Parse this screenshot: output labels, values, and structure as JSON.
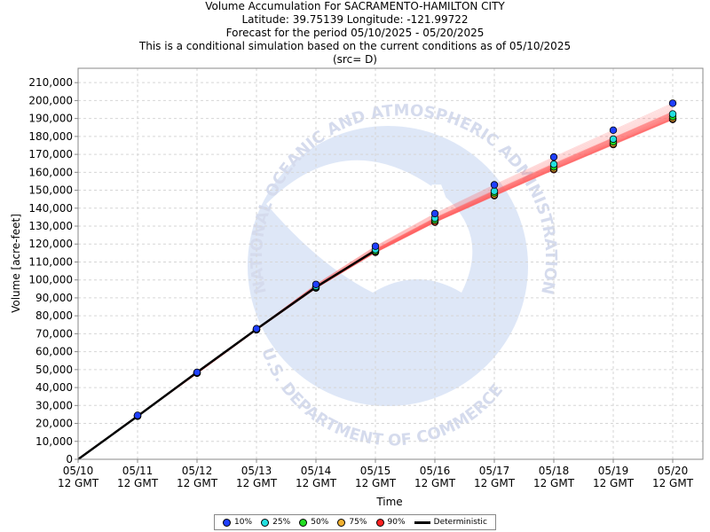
{
  "titles": [
    "Volume Accumulation For SACRAMENTO-HAMILTON CITY",
    "Latitude: 39.75139 Longitude: -121.99722",
    "Forecast for the period 05/10/2025 - 05/20/2025",
    "This is a conditional simulation based on the current conditions as of 05/10/2025",
    "(src= D)"
  ],
  "watermark": {
    "top_text": "NATIONAL OCEANIC AND ATMOSPHERIC ADMINISTRATION",
    "bottom_text": "U.S. DEPARTMENT OF COMMERCE",
    "logo_text": "NOAA"
  },
  "chart_data": {
    "type": "line",
    "xlabel": "Time",
    "ylabel": "Volume [acre-feet]",
    "x_ticks": [
      {
        "date": "05/10",
        "time": "12 GMT"
      },
      {
        "date": "05/11",
        "time": "12 GMT"
      },
      {
        "date": "05/12",
        "time": "12 GMT"
      },
      {
        "date": "05/13",
        "time": "12 GMT"
      },
      {
        "date": "05/14",
        "time": "12 GMT"
      },
      {
        "date": "05/15",
        "time": "12 GMT"
      },
      {
        "date": "05/16",
        "time": "12 GMT"
      },
      {
        "date": "05/17",
        "time": "12 GMT"
      },
      {
        "date": "05/18",
        "time": "12 GMT"
      },
      {
        "date": "05/19",
        "time": "12 GMT"
      },
      {
        "date": "05/20",
        "time": "12 GMT"
      }
    ],
    "ylim": [
      0,
      218000
    ],
    "y_ticks": [
      0,
      10000,
      20000,
      30000,
      40000,
      50000,
      60000,
      70000,
      80000,
      90000,
      100000,
      110000,
      120000,
      130000,
      140000,
      150000,
      160000,
      170000,
      180000,
      190000,
      200000,
      210000
    ],
    "grid": true,
    "legend_position": "bottom",
    "deterministic": [
      0,
      24000,
      48500,
      72500,
      96000,
      116500,
      133000,
      148000,
      162000,
      176000,
      190000
    ],
    "exceedance_series": [
      {
        "name": "10%",
        "color": "#1f3fff",
        "values": [
          0,
          24500,
          48500,
          72800,
          97500,
          118800,
          137000,
          153000,
          168500,
          183500,
          198500
        ]
      },
      {
        "name": "25%",
        "color": "#22e0e0",
        "values": [
          0,
          24300,
          48300,
          72500,
          96500,
          117000,
          134500,
          149500,
          164500,
          178500,
          192500
        ]
      },
      {
        "name": "50%",
        "color": "#22dd22",
        "values": [
          0,
          24200,
          48200,
          72400,
          96000,
          116200,
          133500,
          148500,
          163000,
          177000,
          191000
        ]
      },
      {
        "name": "75%",
        "color": "#f0b030",
        "values": [
          0,
          24100,
          48100,
          72300,
          95700,
          115800,
          132800,
          147500,
          162000,
          176000,
          190000
        ]
      },
      {
        "name": "90%",
        "color": "#ff2020",
        "values": [
          0,
          24000,
          48000,
          72200,
          95500,
          115400,
          132200,
          147000,
          161500,
          175500,
          189500
        ]
      }
    ],
    "deterministic_label": "Deterministic"
  }
}
